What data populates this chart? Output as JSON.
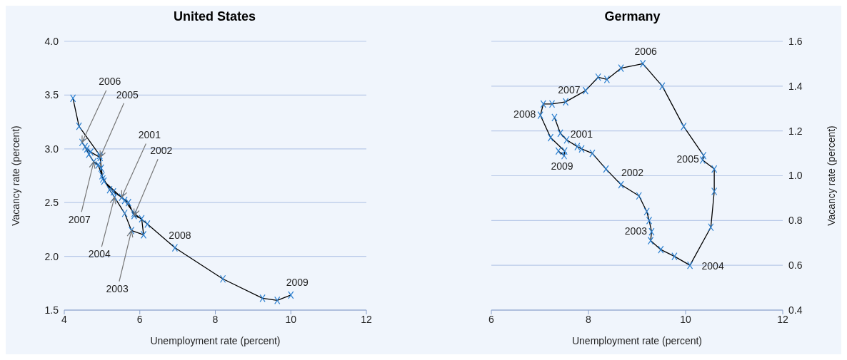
{
  "chart_data": [
    {
      "type": "line",
      "title": "United States",
      "xlabel": "Unemployment rate (percent)",
      "ylabel": "Vacancy rate (percent)",
      "x": [
        4.23,
        4.39,
        4.94,
        4.98,
        5.02,
        5.3,
        5.52,
        5.7,
        5.85,
        6.05,
        6.1,
        5.78,
        5.6,
        5.33,
        5.2,
        5.0,
        4.95,
        4.7,
        4.6,
        4.47,
        4.55,
        4.65,
        4.78,
        4.9,
        5.05,
        5.6,
        5.85,
        6.2,
        6.93,
        8.2,
        9.25,
        9.64,
        10.0
      ],
      "values": [
        3.47,
        3.21,
        2.94,
        2.82,
        2.72,
        2.6,
        2.55,
        2.5,
        2.38,
        2.35,
        2.2,
        2.24,
        2.4,
        2.55,
        2.62,
        2.75,
        2.92,
        2.97,
        3.0,
        3.06,
        3.02,
        2.95,
        2.88,
        2.85,
        2.7,
        2.52,
        2.4,
        2.3,
        2.08,
        1.79,
        1.61,
        1.59,
        1.64
      ],
      "color": "#000000",
      "marker": "cross",
      "line_style": "solid",
      "grid": "y",
      "xlim": [
        4,
        12
      ],
      "xticks": [
        4,
        6,
        8,
        10,
        12
      ],
      "ylim": [
        1.5,
        4.0
      ],
      "yticks": [
        {
          "value": 1.5,
          "label": "1.5"
        },
        {
          "value": 2,
          "label": "2.0"
        },
        {
          "value": 2.5,
          "label": "2.5"
        },
        {
          "value": 3,
          "label": "3.0"
        },
        {
          "value": 3.5,
          "label": "3.5"
        },
        {
          "value": 4,
          "label": "4.0"
        }
      ],
      "annotations": [
        {
          "text": "2006",
          "x": 4.47,
          "y": 3.06
        },
        {
          "text": "2005",
          "x": 4.95,
          "y": 2.92
        },
        {
          "text": "2001",
          "x": 5.52,
          "y": 2.55
        },
        {
          "text": "2002",
          "x": 5.85,
          "y": 2.38
        },
        {
          "text": "2007",
          "x": 4.78,
          "y": 2.88
        },
        {
          "text": "2004",
          "x": 5.33,
          "y": 2.55
        },
        {
          "text": "2003",
          "x": 5.78,
          "y": 2.24
        },
        {
          "text": "2008",
          "x": 6.93,
          "y": 2.08
        },
        {
          "text": "2009",
          "x": 10.0,
          "y": 1.64
        }
      ]
    },
    {
      "type": "line",
      "title": "Germany",
      "xlabel": "Unemployment rate (percent)",
      "ylabel": "Vacancy rate (percent)",
      "x": [
        7.3,
        7.42,
        7.55,
        7.77,
        7.86,
        8.08,
        8.36,
        8.67,
        9.04,
        9.2,
        9.25,
        9.3,
        9.28,
        9.49,
        9.77,
        10.09,
        10.52,
        10.59,
        10.59,
        10.35,
        10.37,
        9.96,
        9.52,
        9.12,
        8.67,
        8.38,
        8.2,
        7.94,
        7.53,
        7.25,
        7.07,
        7.01,
        7.22,
        7.51,
        7.5,
        7.38
      ],
      "values": [
        1.26,
        1.19,
        1.16,
        1.13,
        1.12,
        1.1,
        1.03,
        0.96,
        0.91,
        0.84,
        0.8,
        0.75,
        0.71,
        0.67,
        0.64,
        0.6,
        0.77,
        0.93,
        1.03,
        1.07,
        1.09,
        1.22,
        1.4,
        1.5,
        1.48,
        1.43,
        1.44,
        1.38,
        1.33,
        1.32,
        1.32,
        1.27,
        1.17,
        1.11,
        1.09,
        1.11
      ],
      "color": "#000000",
      "marker": "cross",
      "line_style": "solid",
      "grid": "y",
      "xlim": [
        6,
        12
      ],
      "xticks": [
        6,
        8,
        10,
        12
      ],
      "ylim": [
        0.4,
        1.6
      ],
      "yticks": [
        0.4,
        0.6,
        0.8,
        {
          "value": 1,
          "label": "1.0"
        },
        1.2,
        1.4,
        1.6
      ],
      "annotations": [
        {
          "text": "2006",
          "x": 9.12,
          "y": 1.5
        },
        {
          "text": "2007",
          "x": 7.94,
          "y": 1.38
        },
        {
          "text": "2008",
          "x": 7.01,
          "y": 1.27
        },
        {
          "text": "2001",
          "x": 7.55,
          "y": 1.16
        },
        {
          "text": "2009",
          "x": 7.5,
          "y": 1.09
        },
        {
          "text": "2002",
          "x": 8.67,
          "y": 0.96
        },
        {
          "text": "2005",
          "x": 10.37,
          "y": 1.09
        },
        {
          "text": "2003",
          "x": 9.3,
          "y": 0.75
        },
        {
          "text": "2004",
          "x": 10.09,
          "y": 0.6
        }
      ]
    }
  ]
}
